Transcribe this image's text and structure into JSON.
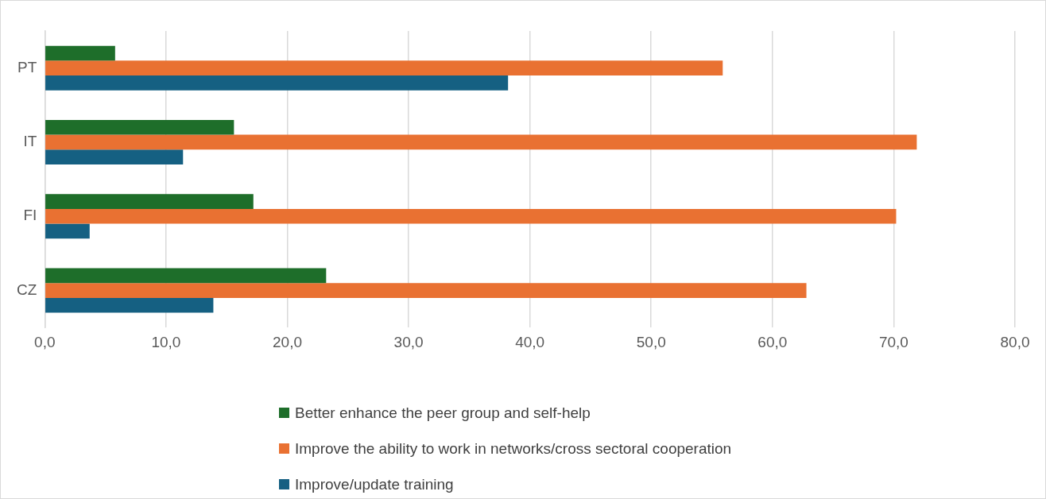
{
  "chart_data": {
    "type": "bar",
    "orientation": "horizontal",
    "categories": [
      "PT",
      "IT",
      "FI",
      "CZ"
    ],
    "series": [
      {
        "name": "Better enhance the peer group and self-help",
        "color": "#1e6e2a",
        "values": [
          5.8,
          15.6,
          17.2,
          23.2
        ]
      },
      {
        "name": "Improve the ability to work in networks/cross sectoral cooperation",
        "color": "#e97132",
        "values": [
          55.9,
          71.9,
          70.2,
          62.8
        ]
      },
      {
        "name": "Improve/update training",
        "color": "#156082",
        "values": [
          38.2,
          11.4,
          3.7,
          13.9
        ]
      }
    ],
    "xlim": [
      0,
      80
    ],
    "xticks": [
      {
        "value": 0,
        "label": "0,0"
      },
      {
        "value": 10,
        "label": "10,0"
      },
      {
        "value": 20,
        "label": "20,0"
      },
      {
        "value": 30,
        "label": "30,0"
      },
      {
        "value": 40,
        "label": "40,0"
      },
      {
        "value": 50,
        "label": "50,0"
      },
      {
        "value": 60,
        "label": "60,0"
      },
      {
        "value": 70,
        "label": "70,0"
      },
      {
        "value": 80,
        "label": "80,0"
      }
    ],
    "grid": "x",
    "legend": "bottom"
  }
}
